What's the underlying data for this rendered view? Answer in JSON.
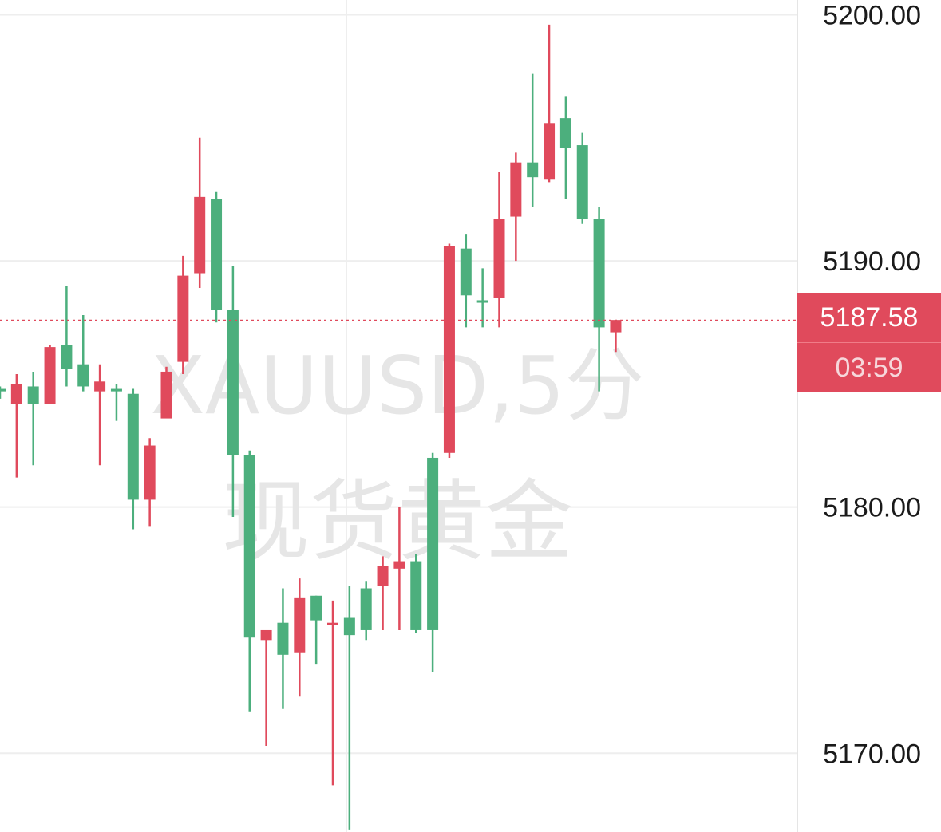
{
  "chart_data": {
    "type": "candlestick",
    "title": "",
    "watermark": {
      "symbol": "XAUUSD,5分",
      "name": "现货黄金"
    },
    "ylim": [
      5166.8,
      5200.6
    ],
    "y_ticks": [
      "5200.00",
      "5190.00",
      "5180.00",
      "5170.00"
    ],
    "y_tick_values": [
      5200,
      5190,
      5180,
      5170
    ],
    "current_price": 5187.58,
    "current_price_label": "5187.58",
    "countdown": "03:59",
    "colors": {
      "up": "#4caf7d",
      "down": "#e04a5c",
      "grid": "#eeeeee",
      "axis_line": "#e5e5e5"
    },
    "candles": [
      {
        "o": 5184.7,
        "h": 5184.9,
        "l": 5184.4,
        "c": 5184.8
      },
      {
        "o": 5185.0,
        "h": 5185.4,
        "l": 5181.2,
        "c": 5184.2
      },
      {
        "o": 5184.2,
        "h": 5185.5,
        "l": 5181.7,
        "c": 5184.9
      },
      {
        "o": 5186.5,
        "h": 5186.6,
        "l": 5184.2,
        "c": 5184.2
      },
      {
        "o": 5185.6,
        "h": 5189.0,
        "l": 5184.9,
        "c": 5186.6
      },
      {
        "o": 5184.9,
        "h": 5187.8,
        "l": 5184.7,
        "c": 5185.8
      },
      {
        "o": 5185.1,
        "h": 5185.8,
        "l": 5181.7,
        "c": 5184.7
      },
      {
        "o": 5184.7,
        "h": 5185.0,
        "l": 5183.5,
        "c": 5184.8
      },
      {
        "o": 5180.3,
        "h": 5184.8,
        "l": 5179.1,
        "c": 5184.6
      },
      {
        "o": 5182.5,
        "h": 5182.8,
        "l": 5179.2,
        "c": 5180.3
      },
      {
        "o": 5185.5,
        "h": 5185.7,
        "l": 5183.7,
        "c": 5183.6
      },
      {
        "o": 5189.4,
        "h": 5190.2,
        "l": 5185.4,
        "c": 5185.9
      },
      {
        "o": 5192.6,
        "h": 5195.0,
        "l": 5188.9,
        "c": 5189.5
      },
      {
        "o": 5188.0,
        "h": 5192.8,
        "l": 5187.5,
        "c": 5192.5
      },
      {
        "o": 5182.1,
        "h": 5189.8,
        "l": 5179.6,
        "c": 5188.0
      },
      {
        "o": 5174.7,
        "h": 5182.3,
        "l": 5171.7,
        "c": 5182.1
      },
      {
        "o": 5175.0,
        "h": 5175.0,
        "l": 5170.3,
        "c": 5174.6
      },
      {
        "o": 5174.0,
        "h": 5176.7,
        "l": 5171.8,
        "c": 5175.3
      },
      {
        "o": 5176.3,
        "h": 5177.1,
        "l": 5172.3,
        "c": 5174.1
      },
      {
        "o": 5175.4,
        "h": 5176.4,
        "l": 5173.6,
        "c": 5176.4
      },
      {
        "o": 5175.3,
        "h": 5176.2,
        "l": 5168.7,
        "c": 5175.2
      },
      {
        "o": 5174.8,
        "h": 5176.8,
        "l": 5166.9,
        "c": 5175.5
      },
      {
        "o": 5175.0,
        "h": 5177.0,
        "l": 5174.6,
        "c": 5176.7
      },
      {
        "o": 5177.6,
        "h": 5178.0,
        "l": 5175.0,
        "c": 5176.8
      },
      {
        "o": 5177.8,
        "h": 5180.0,
        "l": 5175.0,
        "c": 5177.5
      },
      {
        "o": 5175.0,
        "h": 5178.1,
        "l": 5174.9,
        "c": 5177.8
      },
      {
        "o": 5175.0,
        "h": 5182.2,
        "l": 5173.3,
        "c": 5182.0
      },
      {
        "o": 5190.6,
        "h": 5190.7,
        "l": 5182.0,
        "c": 5182.2
      },
      {
        "o": 5188.6,
        "h": 5191.1,
        "l": 5187.3,
        "c": 5190.5
      },
      {
        "o": 5188.3,
        "h": 5189.7,
        "l": 5187.3,
        "c": 5188.4
      },
      {
        "o": 5191.7,
        "h": 5193.6,
        "l": 5187.3,
        "c": 5188.5
      },
      {
        "o": 5194.0,
        "h": 5194.4,
        "l": 5190.0,
        "c": 5191.8
      },
      {
        "o": 5193.4,
        "h": 5197.6,
        "l": 5192.2,
        "c": 5194.0
      },
      {
        "o": 5195.6,
        "h": 5199.6,
        "l": 5193.2,
        "c": 5193.3
      },
      {
        "o": 5194.6,
        "h": 5196.7,
        "l": 5192.5,
        "c": 5195.8
      },
      {
        "o": 5191.7,
        "h": 5195.2,
        "l": 5191.5,
        "c": 5194.7
      },
      {
        "o": 5187.3,
        "h": 5192.2,
        "l": 5184.7,
        "c": 5191.7
      },
      {
        "o": 5187.6,
        "h": 5187.6,
        "l": 5186.3,
        "c": 5187.1
      }
    ]
  }
}
